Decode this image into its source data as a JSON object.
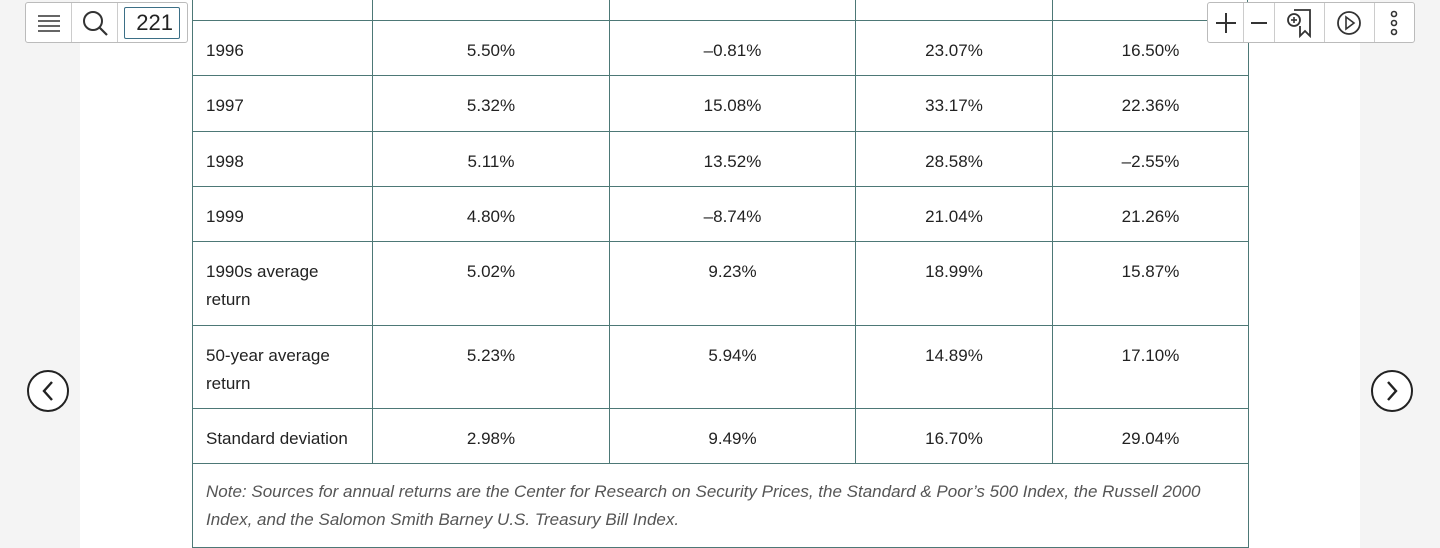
{
  "toolbar": {
    "page": "221"
  },
  "table": {
    "rows": [
      [
        "1996",
        "5.50%",
        "–0.81%",
        "23.07%",
        "16.50%"
      ],
      [
        "1997",
        "5.32%",
        "15.08%",
        "33.17%",
        "22.36%"
      ],
      [
        "1998",
        "5.11%",
        "13.52%",
        "28.58%",
        "–2.55%"
      ],
      [
        "1999",
        "4.80%",
        "–8.74%",
        "21.04%",
        "21.26%"
      ],
      [
        "1990s average return",
        "5.02%",
        "9.23%",
        "18.99%",
        "15.87%"
      ],
      [
        "50-year average return",
        "5.23%",
        "5.94%",
        "14.89%",
        "17.10%"
      ],
      [
        "Standard deviation",
        "2.98%",
        "9.49%",
        "16.70%",
        "29.04%"
      ]
    ],
    "note": "Note: Sources for annual returns are the Center for Research on Security Prices, the Standard & Poor’s 500 Index, the Russell 2000 Index, and the Salomon Smith Barney U.S. Treasury Bill Index."
  }
}
